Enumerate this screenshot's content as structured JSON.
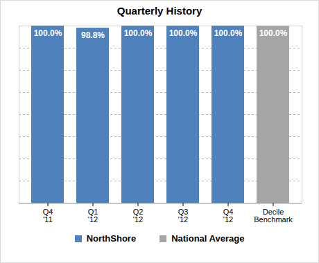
{
  "chart_data": {
    "type": "bar",
    "title": "Quarterly History",
    "categories": [
      "Q4 '11",
      "Q1 '12",
      "Q2 '12",
      "Q3 '12",
      "Q4 '12",
      "Decile Benchmark"
    ],
    "series": [
      {
        "name": "NorthShore",
        "color": "#4f81bd",
        "values": [
          100,
          98.8,
          100,
          100,
          100,
          null
        ],
        "value_labels": [
          "100.0%",
          "98.8%",
          "100.0%",
          "100.0%",
          "100.0%",
          null
        ]
      },
      {
        "name": "National Average",
        "color": "#a5a5a5",
        "values": [
          null,
          null,
          null,
          null,
          null,
          100
        ],
        "value_labels": [
          null,
          null,
          null,
          null,
          null,
          "100.0%"
        ]
      }
    ],
    "ylim": [
      0,
      100
    ],
    "yticks": [
      0,
      12.5,
      25,
      37.5,
      50,
      62.5,
      75,
      87.5,
      100
    ],
    "grid": true,
    "data_labels": true,
    "tick_labels": "x",
    "legend": "bottom"
  }
}
